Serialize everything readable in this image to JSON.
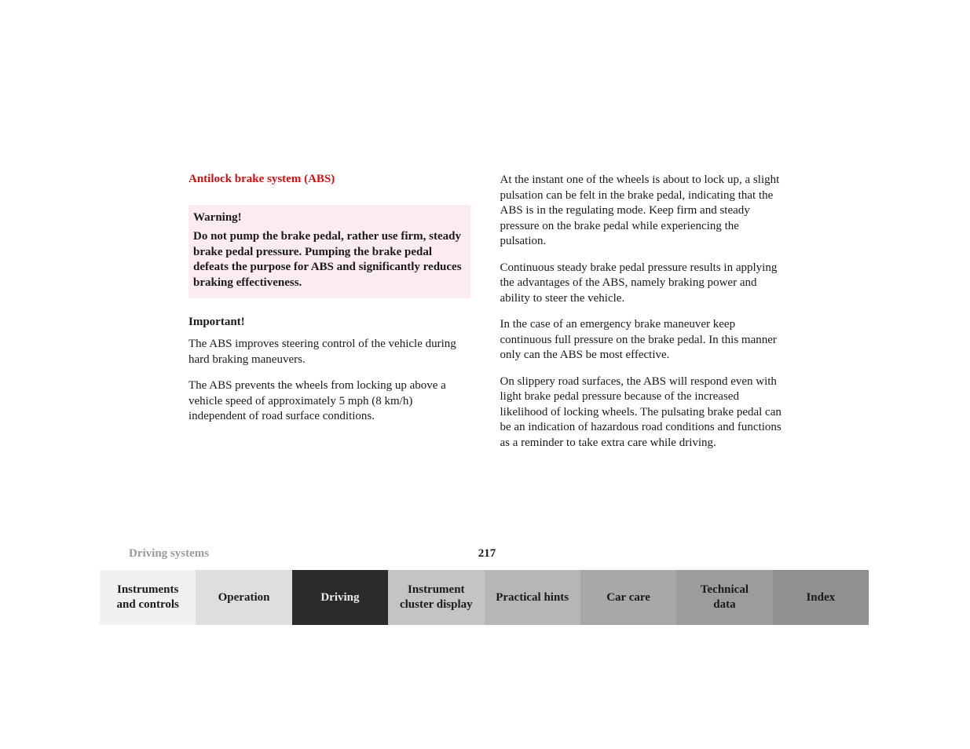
{
  "section_title": "Antilock brake system (ABS)",
  "warning": {
    "title": "Warning!",
    "text": "Do not pump the brake pedal, rather use firm, steady brake pedal pressure. Pumping the brake pedal defeats the purpose for ABS and significantly reduces braking effectiveness."
  },
  "important": {
    "title": "Important!",
    "paragraphs": [
      "The ABS improves steering control of the vehicle during hard braking maneuvers.",
      "The ABS prevents the wheels from locking up above a vehicle speed of approximately 5 mph (8 km/h) independent of road surface conditions."
    ]
  },
  "right_paragraphs": [
    "At the instant one of the wheels is about to lock up, a slight pulsation can be felt in the brake pedal, indicating that the ABS is in the regulating mode. Keep firm and steady pressure on the brake pedal while experiencing the pulsation.",
    "Continuous steady brake pedal pressure results in applying the advantages of the ABS, namely braking power and ability to steer the vehicle.",
    "In the case of an emergency brake maneuver keep continuous full pressure on the brake pedal. In this manner only can the ABS be most effective.",
    "On slippery road surfaces, the ABS will respond even with light brake pedal pressure because of the increased likelihood of locking wheels. The pulsating brake pedal can be an indication of hazardous road conditions and functions as a reminder to take extra care while driving."
  ],
  "footer": {
    "section": "Driving systems",
    "page": "217"
  },
  "tabs": [
    {
      "label": "Instruments\nand controls",
      "bg": "#f0f0ee",
      "fg": "#1a1a1a"
    },
    {
      "label": "Operation",
      "bg": "#dedede",
      "fg": "#1a1a1a"
    },
    {
      "label": "Driving",
      "bg": "#2a2a2a",
      "fg": "#eaeaea"
    },
    {
      "label": "Instrument\ncluster display",
      "bg": "#c4c4c4",
      "fg": "#1a1a1a"
    },
    {
      "label": "Practical hints",
      "bg": "#b6b6b6",
      "fg": "#1a1a1a"
    },
    {
      "label": "Car care",
      "bg": "#a8a8a8",
      "fg": "#1a1a1a"
    },
    {
      "label": "Technical\ndata",
      "bg": "#9c9c9c",
      "fg": "#1a1a1a"
    },
    {
      "label": "Index",
      "bg": "#909090",
      "fg": "#1a1a1a"
    }
  ]
}
